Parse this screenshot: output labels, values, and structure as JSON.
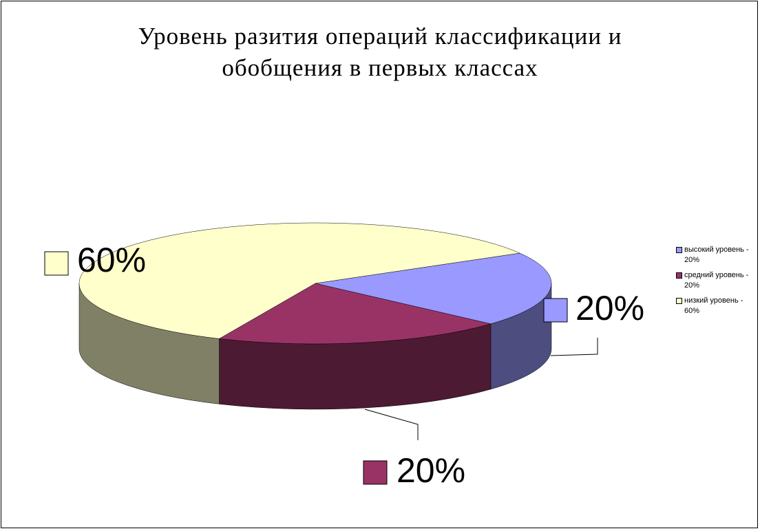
{
  "chart_data": {
    "type": "pie",
    "title": "Уровень разития операций классификации и обобщения в первых классах",
    "categories": [
      "высокий уровень - 20%",
      "средний уровень - 20%",
      "низкий уровень - 60%"
    ],
    "values": [
      20,
      20,
      60
    ],
    "value_labels": [
      "20%",
      "20%",
      "60%"
    ],
    "colors": [
      "#9999ff",
      "#993366",
      "#ffffcc"
    ],
    "legend": "right"
  }
}
